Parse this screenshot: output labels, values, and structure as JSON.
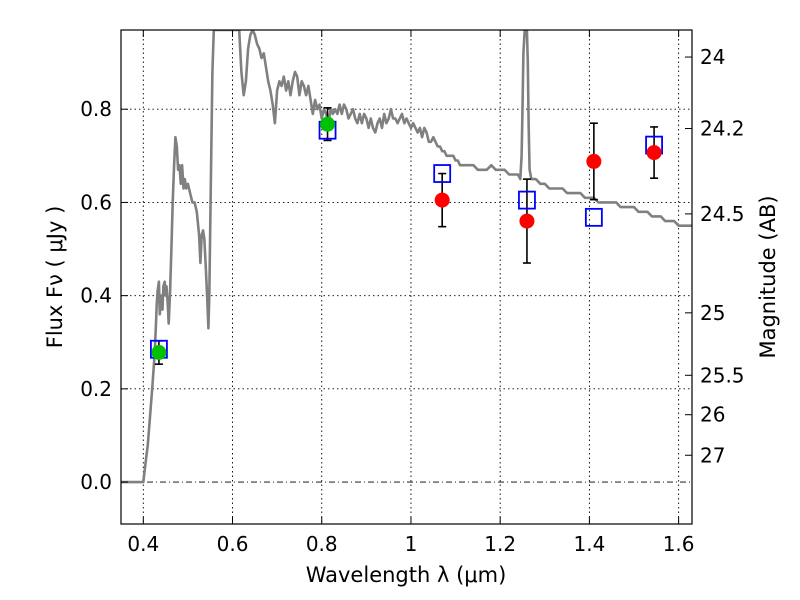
{
  "chart_data": {
    "type": "scatter",
    "xlabel": "Wavelength  λ (μm)",
    "ylabel_left": "Flux  Fν  ( μJy )",
    "ylabel_right": "Magnitude (AB)",
    "xlim": [
      0.35,
      1.63
    ],
    "ylim": [
      -0.09,
      0.97
    ],
    "x_ticks": [
      0.4,
      0.6,
      0.8,
      1.0,
      1.2,
      1.4,
      1.6
    ],
    "x_tick_labels": [
      "0.4",
      "0.6",
      "0.8",
      "1",
      "1.2",
      "1.4",
      "1.6"
    ],
    "y_ticks": [
      0.0,
      0.2,
      0.4,
      0.6,
      0.8
    ],
    "y_tick_labels": [
      "0.0",
      "0.2",
      "0.4",
      "0.6",
      "0.8"
    ],
    "mag_ticks": [
      {
        "label": "24",
        "flux": 0.912
      },
      {
        "label": "24.2",
        "flux": 0.7586
      },
      {
        "label": "24.5",
        "flux": 0.5754
      },
      {
        "label": "25",
        "flux": 0.3631
      },
      {
        "label": "25.5",
        "flux": 0.2291
      },
      {
        "label": "26",
        "flux": 0.1445
      },
      {
        "label": "27",
        "flux": 0.0575
      }
    ],
    "grid": true,
    "colors": {
      "spectrum": "#808080",
      "green_points": "#00c000",
      "red_points": "#ff0000",
      "model_boxes": "#0000ff",
      "errorbars": "#000000"
    },
    "spectrum": [
      [
        0.35,
        0.0
      ],
      [
        0.4,
        0.0
      ],
      [
        0.405,
        0.04
      ],
      [
        0.41,
        0.08
      ],
      [
        0.415,
        0.14
      ],
      [
        0.42,
        0.2
      ],
      [
        0.425,
        0.27
      ],
      [
        0.428,
        0.33
      ],
      [
        0.43,
        0.38
      ],
      [
        0.432,
        0.41
      ],
      [
        0.435,
        0.43
      ],
      [
        0.437,
        0.36
      ],
      [
        0.44,
        0.4
      ],
      [
        0.443,
        0.37
      ],
      [
        0.445,
        0.42
      ],
      [
        0.448,
        0.43
      ],
      [
        0.45,
        0.4
      ],
      [
        0.452,
        0.42
      ],
      [
        0.455,
        0.38
      ],
      [
        0.457,
        0.34
      ],
      [
        0.46,
        0.41
      ],
      [
        0.463,
        0.5
      ],
      [
        0.466,
        0.6
      ],
      [
        0.469,
        0.68
      ],
      [
        0.472,
        0.74
      ],
      [
        0.475,
        0.72
      ],
      [
        0.478,
        0.67
      ],
      [
        0.481,
        0.68
      ],
      [
        0.484,
        0.64
      ],
      [
        0.487,
        0.68
      ],
      [
        0.49,
        0.63
      ],
      [
        0.493,
        0.65
      ],
      [
        0.496,
        0.63
      ],
      [
        0.5,
        0.64
      ],
      [
        0.505,
        0.62
      ],
      [
        0.51,
        0.6
      ],
      [
        0.515,
        0.6
      ],
      [
        0.52,
        0.58
      ],
      [
        0.525,
        0.53
      ],
      [
        0.528,
        0.47
      ],
      [
        0.531,
        0.53
      ],
      [
        0.534,
        0.54
      ],
      [
        0.537,
        0.52
      ],
      [
        0.54,
        0.46
      ],
      [
        0.543,
        0.4
      ],
      [
        0.546,
        0.33
      ],
      [
        0.548,
        0.4
      ],
      [
        0.551,
        0.62
      ],
      [
        0.555,
        0.88
      ],
      [
        0.558,
        0.97
      ],
      [
        0.6,
        0.97
      ],
      [
        0.615,
        0.97
      ],
      [
        0.62,
        0.88
      ],
      [
        0.625,
        0.83
      ],
      [
        0.63,
        0.86
      ],
      [
        0.635,
        0.93
      ],
      [
        0.64,
        0.96
      ],
      [
        0.645,
        0.97
      ],
      [
        0.65,
        0.96
      ],
      [
        0.655,
        0.94
      ],
      [
        0.66,
        0.93
      ],
      [
        0.665,
        0.91
      ],
      [
        0.67,
        0.92
      ],
      [
        0.675,
        0.89
      ],
      [
        0.68,
        0.86
      ],
      [
        0.685,
        0.84
      ],
      [
        0.69,
        0.81
      ],
      [
        0.695,
        0.77
      ],
      [
        0.7,
        0.84
      ],
      [
        0.705,
        0.86
      ],
      [
        0.71,
        0.85
      ],
      [
        0.715,
        0.87
      ],
      [
        0.72,
        0.84
      ],
      [
        0.725,
        0.86
      ],
      [
        0.73,
        0.83
      ],
      [
        0.735,
        0.86
      ],
      [
        0.74,
        0.88
      ],
      [
        0.745,
        0.87
      ],
      [
        0.75,
        0.83
      ],
      [
        0.755,
        0.86
      ],
      [
        0.76,
        0.85
      ],
      [
        0.765,
        0.83
      ],
      [
        0.77,
        0.85
      ],
      [
        0.775,
        0.82
      ],
      [
        0.78,
        0.79
      ],
      [
        0.785,
        0.82
      ],
      [
        0.79,
        0.8
      ],
      [
        0.795,
        0.81
      ],
      [
        0.8,
        0.78
      ],
      [
        0.805,
        0.8
      ],
      [
        0.81,
        0.79
      ],
      [
        0.815,
        0.77
      ],
      [
        0.82,
        0.8
      ],
      [
        0.825,
        0.79
      ],
      [
        0.83,
        0.8
      ],
      [
        0.835,
        0.79
      ],
      [
        0.84,
        0.81
      ],
      [
        0.845,
        0.79
      ],
      [
        0.85,
        0.81
      ],
      [
        0.855,
        0.8
      ],
      [
        0.86,
        0.78
      ],
      [
        0.865,
        0.79
      ],
      [
        0.87,
        0.8
      ],
      [
        0.875,
        0.78
      ],
      [
        0.88,
        0.77
      ],
      [
        0.885,
        0.79
      ],
      [
        0.89,
        0.77
      ],
      [
        0.895,
        0.79
      ],
      [
        0.9,
        0.78
      ],
      [
        0.905,
        0.76
      ],
      [
        0.91,
        0.78
      ],
      [
        0.915,
        0.76
      ],
      [
        0.92,
        0.75
      ],
      [
        0.925,
        0.77
      ],
      [
        0.93,
        0.78
      ],
      [
        0.935,
        0.76
      ],
      [
        0.94,
        0.79
      ],
      [
        0.945,
        0.77
      ],
      [
        0.95,
        0.78
      ],
      [
        0.955,
        0.8
      ],
      [
        0.96,
        0.78
      ],
      [
        0.965,
        0.78
      ],
      [
        0.97,
        0.77
      ],
      [
        0.975,
        0.78
      ],
      [
        0.98,
        0.79
      ],
      [
        0.985,
        0.77
      ],
      [
        0.99,
        0.78
      ],
      [
        0.995,
        0.77
      ],
      [
        1.0,
        0.76
      ],
      [
        1.005,
        0.77
      ],
      [
        1.01,
        0.76
      ],
      [
        1.015,
        0.75
      ],
      [
        1.02,
        0.76
      ],
      [
        1.025,
        0.74
      ],
      [
        1.03,
        0.76
      ],
      [
        1.035,
        0.75
      ],
      [
        1.04,
        0.73
      ],
      [
        1.045,
        0.73
      ],
      [
        1.05,
        0.74
      ],
      [
        1.055,
        0.73
      ],
      [
        1.06,
        0.72
      ],
      [
        1.065,
        0.72
      ],
      [
        1.07,
        0.71
      ],
      [
        1.075,
        0.71
      ],
      [
        1.08,
        0.7
      ],
      [
        1.085,
        0.7
      ],
      [
        1.09,
        0.7
      ],
      [
        1.095,
        0.7
      ],
      [
        1.1,
        0.69
      ],
      [
        1.105,
        0.69
      ],
      [
        1.11,
        0.68
      ],
      [
        1.12,
        0.68
      ],
      [
        1.13,
        0.68
      ],
      [
        1.14,
        0.68
      ],
      [
        1.15,
        0.67
      ],
      [
        1.16,
        0.67
      ],
      [
        1.17,
        0.67
      ],
      [
        1.18,
        0.68
      ],
      [
        1.19,
        0.67
      ],
      [
        1.2,
        0.67
      ],
      [
        1.21,
        0.67
      ],
      [
        1.22,
        0.66
      ],
      [
        1.23,
        0.66
      ],
      [
        1.24,
        0.66
      ],
      [
        1.245,
        0.65
      ],
      [
        1.248,
        0.7
      ],
      [
        1.25,
        0.8
      ],
      [
        1.252,
        0.92
      ],
      [
        1.255,
        0.97
      ],
      [
        1.26,
        0.97
      ],
      [
        1.262,
        0.9
      ],
      [
        1.264,
        0.76
      ],
      [
        1.266,
        0.67
      ],
      [
        1.27,
        0.65
      ],
      [
        1.28,
        0.65
      ],
      [
        1.29,
        0.64
      ],
      [
        1.3,
        0.64
      ],
      [
        1.31,
        0.63
      ],
      [
        1.32,
        0.63
      ],
      [
        1.33,
        0.63
      ],
      [
        1.34,
        0.63
      ],
      [
        1.35,
        0.62
      ],
      [
        1.36,
        0.62
      ],
      [
        1.37,
        0.62
      ],
      [
        1.38,
        0.62
      ],
      [
        1.39,
        0.61
      ],
      [
        1.4,
        0.61
      ],
      [
        1.41,
        0.61
      ],
      [
        1.42,
        0.6
      ],
      [
        1.43,
        0.6
      ],
      [
        1.44,
        0.6
      ],
      [
        1.45,
        0.6
      ],
      [
        1.46,
        0.6
      ],
      [
        1.47,
        0.59
      ],
      [
        1.48,
        0.59
      ],
      [
        1.49,
        0.59
      ],
      [
        1.5,
        0.59
      ],
      [
        1.51,
        0.58
      ],
      [
        1.52,
        0.58
      ],
      [
        1.53,
        0.58
      ],
      [
        1.54,
        0.57
      ],
      [
        1.55,
        0.57
      ],
      [
        1.56,
        0.57
      ],
      [
        1.57,
        0.56
      ],
      [
        1.58,
        0.56
      ],
      [
        1.59,
        0.56
      ],
      [
        1.6,
        0.55
      ],
      [
        1.61,
        0.55
      ],
      [
        1.62,
        0.55
      ],
      [
        1.63,
        0.55
      ]
    ],
    "model_boxes": [
      {
        "x": 0.435,
        "y": 0.285
      },
      {
        "x": 0.813,
        "y": 0.755
      },
      {
        "x": 1.07,
        "y": 0.662
      },
      {
        "x": 1.26,
        "y": 0.605
      },
      {
        "x": 1.41,
        "y": 0.568
      },
      {
        "x": 1.545,
        "y": 0.723
      }
    ],
    "green_points": [
      {
        "x": 0.435,
        "y": 0.278,
        "err": 0.025
      },
      {
        "x": 0.813,
        "y": 0.768,
        "err": 0.035
      }
    ],
    "red_points": [
      {
        "x": 1.07,
        "y": 0.605,
        "err": 0.057
      },
      {
        "x": 1.26,
        "y": 0.56,
        "err": 0.09
      },
      {
        "x": 1.41,
        "y": 0.688,
        "err": 0.082
      },
      {
        "x": 1.545,
        "y": 0.707,
        "err": 0.055
      }
    ]
  }
}
